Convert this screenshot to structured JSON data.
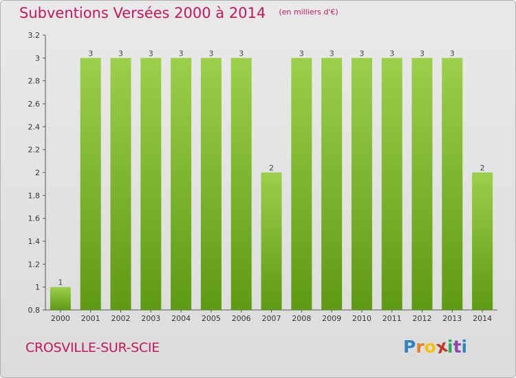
{
  "header": {
    "title": "Subventions Versées 2000 à 2014",
    "subtitle": "(en milliers d'€)"
  },
  "footer": {
    "commune": "CROSVILLE-SUR-SCIE",
    "logo": {
      "letters": [
        "P",
        "r",
        "o",
        "x",
        "i",
        "t",
        "i"
      ],
      "colors": [
        "#2e86c1",
        "#e67e22",
        "#f1c40f",
        "#c0392b",
        "#27ae60",
        "#8e44ad",
        "#2e86c1"
      ]
    }
  },
  "chart_data": {
    "type": "bar",
    "categories": [
      "2000",
      "2001",
      "2002",
      "2003",
      "2004",
      "2005",
      "2006",
      "2007",
      "2008",
      "2009",
      "2010",
      "2011",
      "2012",
      "2013",
      "2014"
    ],
    "values": [
      1,
      3,
      3,
      3,
      3,
      3,
      3,
      2,
      3,
      3,
      3,
      3,
      3,
      3,
      2
    ],
    "data_labels": [
      "1",
      "3",
      "3",
      "3",
      "3",
      "3",
      "3",
      "2",
      "3",
      "3",
      "3",
      "3",
      "3",
      "3",
      "2"
    ],
    "title": "Subventions Versées 2000 à 2014",
    "xlabel": "",
    "ylabel": "",
    "ylim": [
      0.8,
      3.2
    ],
    "yticks": [
      "0.8",
      "1",
      "1.2",
      "1.4",
      "1.6",
      "1.8",
      "2",
      "2.2",
      "2.4",
      "2.6",
      "2.8",
      "3",
      "3.2"
    ],
    "grid": false,
    "bar_color_top": "#9ccf4a",
    "bar_color_bottom": "#5e9a12"
  }
}
